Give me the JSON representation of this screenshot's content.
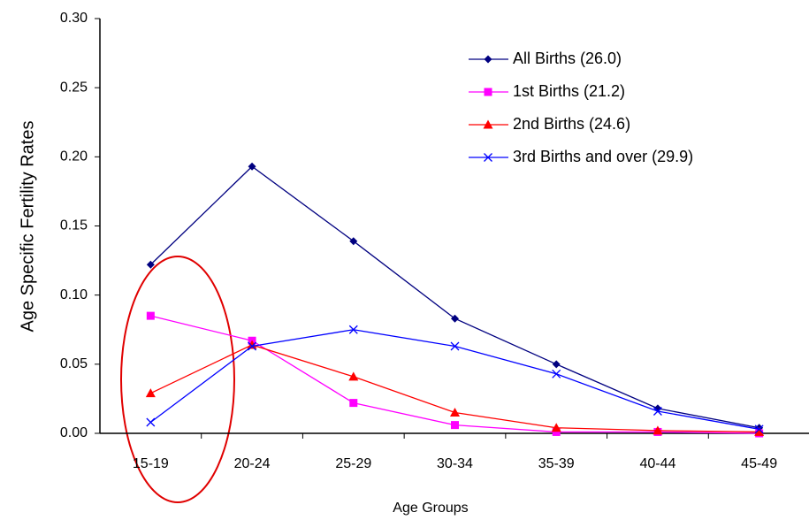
{
  "chart_data": {
    "type": "line",
    "x_label": "Age Groups",
    "y_label": "Age Specific Fertility Rates",
    "categories": [
      "15-19",
      "20-24",
      "25-29",
      "30-34",
      "35-39",
      "40-44",
      "45-49"
    ],
    "series": [
      {
        "name": "All Births (26.0)",
        "color": "#000080",
        "marker": "diamond",
        "values": [
          0.122,
          0.193,
          0.139,
          0.083,
          0.05,
          0.018,
          0.004
        ]
      },
      {
        "name": "1st Births (21.2)",
        "color": "#ff00ff",
        "marker": "square",
        "values": [
          0.085,
          0.067,
          0.022,
          0.006,
          0.001,
          0.001,
          0.0
        ]
      },
      {
        "name": "2nd Births (24.6)",
        "color": "#ff0000",
        "marker": "triangle",
        "values": [
          0.029,
          0.064,
          0.041,
          0.015,
          0.004,
          0.002,
          0.001
        ]
      },
      {
        "name": "3rd Births and over (29.9)",
        "color": "#0000ff",
        "marker": "x",
        "values": [
          0.008,
          0.063,
          0.075,
          0.063,
          0.043,
          0.016,
          0.003
        ]
      }
    ],
    "ylim": [
      0,
      0.3
    ],
    "yticks": [
      {
        "value": 0,
        "label": "0.00"
      },
      {
        "value": 0.05,
        "label": "0.05"
      },
      {
        "value": 0.1,
        "label": "0.10"
      },
      {
        "value": 0.15,
        "label": "0.15"
      },
      {
        "value": 0.2,
        "label": "0.20"
      },
      {
        "value": 0.25,
        "label": "0.25"
      },
      {
        "value": 0.3,
        "label": "0.30"
      }
    ],
    "legend": "upper right"
  }
}
